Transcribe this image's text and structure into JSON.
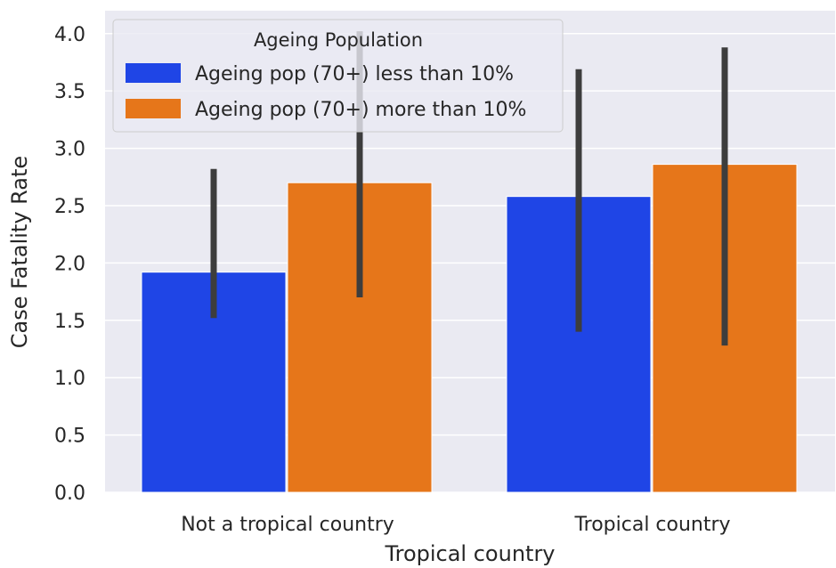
{
  "chart_data": {
    "type": "bar",
    "xlabel": "Tropical country",
    "ylabel": "Case Fatality Rate",
    "ylim": [
      0,
      4.2
    ],
    "yticks": [
      "0.0",
      "0.5",
      "1.0",
      "1.5",
      "2.0",
      "2.5",
      "3.0",
      "3.5",
      "4.0"
    ],
    "categories": [
      "Not a tropical country",
      "Tropical country"
    ],
    "grid": true,
    "legend": {
      "title": "Ageing Population",
      "placement": "top-left"
    },
    "series": [
      {
        "name": "Ageing pop (70+) less than 10%",
        "color": "#1f45e6",
        "values": [
          1.92,
          2.58
        ],
        "error_low": [
          1.52,
          1.4
        ],
        "error_high": [
          2.82,
          3.69
        ]
      },
      {
        "name": "Ageing pop (70+) more than 10%",
        "color": "#e6761a",
        "values": [
          2.7,
          2.86
        ],
        "error_low": [
          1.7,
          1.28
        ],
        "error_high": [
          4.02,
          3.88
        ]
      }
    ]
  },
  "colors": {
    "plot_background": "#eaeaf2",
    "grid": "#ffffff",
    "error_bar": "#3d3d3d"
  }
}
